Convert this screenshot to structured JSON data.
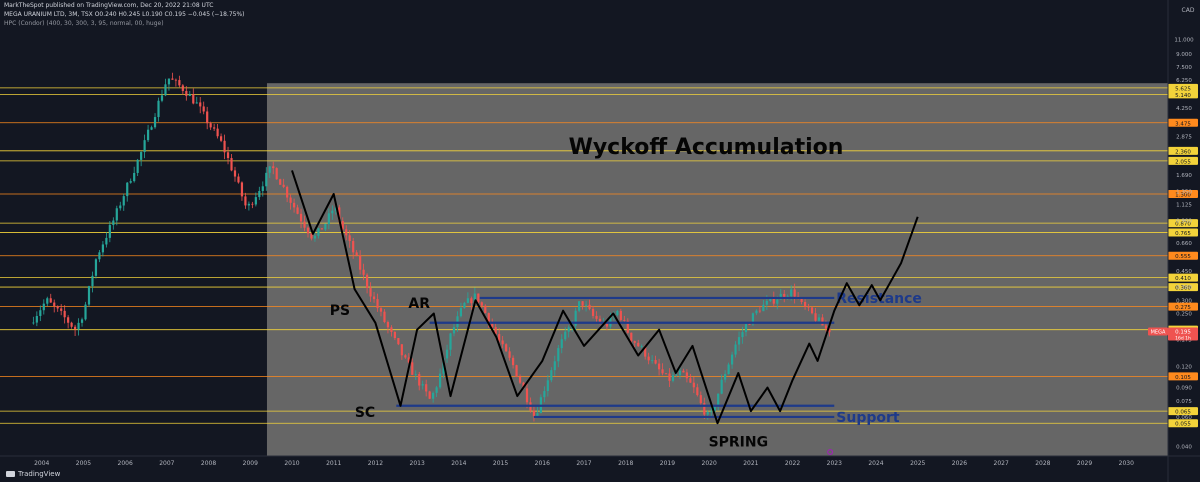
{
  "header": {
    "published_line": "MarkTheSpot published on TradingView.com, Dec 20, 2022 21:08 UTC",
    "symbol_line": "MEGA URANIUM LTD, 3M, TSX  O0.240 H0.245 L0.190 C0.195 −0.045 (−18.75%)",
    "indicator_line": "HPC (Condor) (400, 30, 300, 3, 95, normal, 00, huge)"
  },
  "footer": {
    "brand": "TradingView"
  },
  "currency": "CAD",
  "colors": {
    "background": "#131722",
    "accumulation_box": "#6a6a6a",
    "up_candle": "#26a69a",
    "down_candle": "#ef5350",
    "support_resistance_line": "#1e3a8a",
    "yellow_level": "#f3d33a",
    "orange_level": "#ff8a1d",
    "path_line": "#000000"
  },
  "chart_data": {
    "type": "candlestick",
    "title": "Wyckoff Accumulation",
    "x_axis": {
      "min": 2003,
      "max": 2031,
      "ticks": [
        2004,
        2005,
        2006,
        2007,
        2008,
        2009,
        2010,
        2011,
        2012,
        2013,
        2014,
        2015,
        2016,
        2017,
        2018,
        2019,
        2020,
        2021,
        2022,
        2023,
        2024,
        2025,
        2026,
        2027,
        2028,
        2029,
        2030
      ]
    },
    "y_axis": {
      "scale": "log",
      "min": 0.035,
      "max": 12.5,
      "ticks": [
        0.04,
        0.06,
        0.075,
        0.09,
        0.12,
        0.175,
        0.25,
        0.3,
        0.36,
        0.45,
        0.66,
        0.9,
        1.125,
        1.35,
        1.69,
        2.875,
        4.25,
        6.25,
        7.5,
        9.0,
        11.0
      ]
    },
    "accumulation_box": {
      "x_start": 2009.4,
      "x_end": 2031,
      "y_top": 6.0,
      "y_bottom": 0.035
    },
    "price_levels": [
      {
        "value": 5.625,
        "color": "yellow"
      },
      {
        "value": 5.14,
        "color": "yellow"
      },
      {
        "value": 3.475,
        "color": "orange"
      },
      {
        "value": 2.36,
        "color": "yellow"
      },
      {
        "value": 2.055,
        "color": "yellow"
      },
      {
        "value": 1.3,
        "color": "orange"
      },
      {
        "value": 0.87,
        "color": "yellow"
      },
      {
        "value": 0.765,
        "color": "yellow"
      },
      {
        "value": 0.555,
        "color": "orange"
      },
      {
        "value": 0.41,
        "color": "yellow"
      },
      {
        "value": 0.36,
        "color": "yellow"
      },
      {
        "value": 0.275,
        "color": "orange"
      },
      {
        "value": 0.2,
        "color": "yellow"
      },
      {
        "value": 0.105,
        "color": "orange"
      },
      {
        "value": 0.065,
        "color": "yellow"
      },
      {
        "value": 0.055,
        "color": "yellow"
      }
    ],
    "level_labels": [
      "5.625",
      "5.140",
      "3.475",
      "2.360",
      "2.055",
      "1.300",
      "0.870",
      "0.765",
      "0.555",
      "0.410",
      "0.360",
      "0.275",
      "0.200",
      "0.105",
      "0.065",
      "0.055"
    ],
    "last_price": {
      "symbol": "MEGA",
      "value": 0.195,
      "label": "0.195",
      "countdown": "16d 1h"
    },
    "support_resistance": [
      {
        "name": "Resistance",
        "value": 0.31,
        "x_start": 2014.5,
        "x_end": 2023.0
      },
      {
        "value": 0.22,
        "x_start": 2013.3,
        "x_end": 2023.0
      },
      {
        "value": 0.07,
        "x_start": 2012.5,
        "x_end": 2023.0
      },
      {
        "name": "Support",
        "value": 0.06,
        "x_start": 2015.8,
        "x_end": 2023.0
      }
    ],
    "annotations": [
      {
        "text": "PS",
        "x": 2011.15,
        "y": 0.245
      },
      {
        "text": "AR",
        "x": 2013.05,
        "y": 0.27
      },
      {
        "text": "SC",
        "x": 2011.75,
        "y": 0.06
      },
      {
        "text": "SPRING",
        "x": 2020.7,
        "y": 0.04
      }
    ],
    "projected_path": [
      [
        2010.0,
        1.8
      ],
      [
        2010.5,
        0.75
      ],
      [
        2011.0,
        1.3
      ],
      [
        2011.5,
        0.35
      ],
      [
        2012.0,
        0.22
      ],
      [
        2012.6,
        0.07
      ],
      [
        2013.0,
        0.2
      ],
      [
        2013.4,
        0.25
      ],
      [
        2013.8,
        0.08
      ],
      [
        2014.4,
        0.3
      ],
      [
        2014.9,
        0.18
      ],
      [
        2015.4,
        0.08
      ],
      [
        2016.0,
        0.13
      ],
      [
        2016.5,
        0.26
      ],
      [
        2017.0,
        0.16
      ],
      [
        2017.7,
        0.25
      ],
      [
        2018.3,
        0.14
      ],
      [
        2018.8,
        0.2
      ],
      [
        2019.2,
        0.11
      ],
      [
        2019.6,
        0.16
      ],
      [
        2020.2,
        0.055
      ],
      [
        2020.7,
        0.11
      ],
      [
        2021.0,
        0.065
      ],
      [
        2021.4,
        0.09
      ],
      [
        2021.7,
        0.065
      ],
      [
        2022.0,
        0.1
      ],
      [
        2022.4,
        0.165
      ],
      [
        2022.6,
        0.13
      ],
      [
        2023.0,
        0.26
      ],
      [
        2023.3,
        0.38
      ],
      [
        2023.6,
        0.28
      ],
      [
        2023.9,
        0.37
      ],
      [
        2024.1,
        0.3
      ],
      [
        2024.6,
        0.5
      ],
      [
        2025.0,
        0.95
      ]
    ],
    "candles": []
  }
}
